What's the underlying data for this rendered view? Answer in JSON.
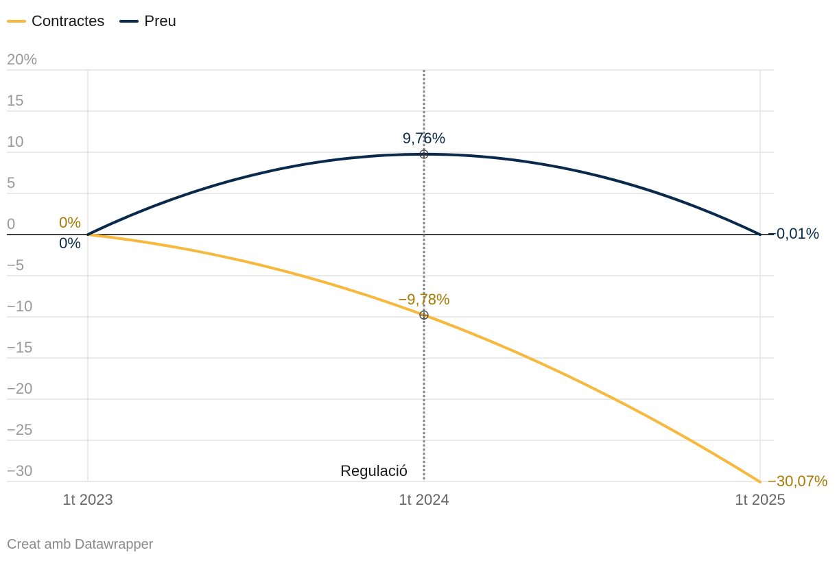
{
  "legend": {
    "items": [
      {
        "label": "Contractes",
        "color": "#f7b93d"
      },
      {
        "label": "Preu",
        "color": "#0a2a4c"
      }
    ]
  },
  "credit": "Creat amb Datawrapper",
  "colors": {
    "contractes": "#f7b93d",
    "preu": "#0a2a4c",
    "contractes_label": "#a87a00",
    "axis_text": "#999999",
    "grid": "#e3e3e3",
    "zero_line": "#000000",
    "annotation_line": "#888888"
  },
  "chart_data": {
    "type": "line",
    "x": [
      "1t 2023",
      "1t 2024",
      "1t 2025"
    ],
    "ylim": [
      -30,
      20
    ],
    "yticks": [
      20,
      15,
      10,
      5,
      0,
      -5,
      -10,
      -15,
      -20,
      -25,
      -30
    ],
    "ytick_labels": [
      "20%",
      "15",
      "10",
      "5",
      "0",
      "−5",
      "−10",
      "−15",
      "−20",
      "−25",
      "−30"
    ],
    "grid": true,
    "legend_position": "top-left",
    "series": [
      {
        "name": "Contractes",
        "values": [
          0,
          -9.78,
          -30.07
        ],
        "labels": [
          "0%",
          "−9,78%",
          "−30,07%"
        ]
      },
      {
        "name": "Preu",
        "values": [
          0,
          9.76,
          -0.01
        ],
        "labels": [
          "0%",
          "9,76%",
          "−0,01%"
        ]
      }
    ],
    "annotations": [
      {
        "x": "1t 2024",
        "text": "Regulació"
      }
    ]
  }
}
